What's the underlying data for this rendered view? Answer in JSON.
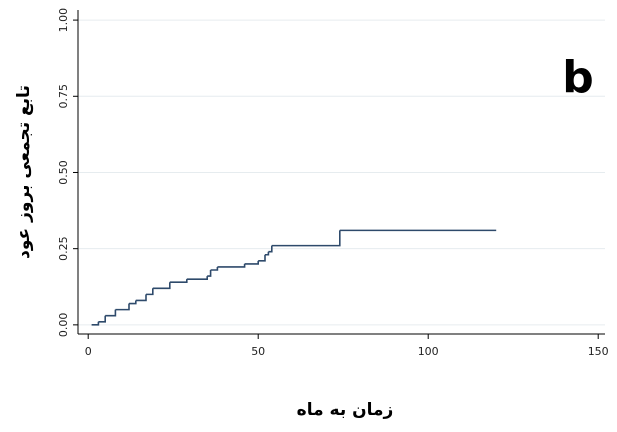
{
  "chart_data": {
    "type": "step",
    "annotation": "b",
    "xlabel": "زمان به ماه",
    "ylabel": "تابع تجمعی بروز عود",
    "color": "#2e4a6b",
    "x": [
      1,
      3,
      5,
      8,
      12,
      14,
      17,
      19,
      24,
      29,
      35,
      36,
      38,
      46,
      50,
      52,
      53,
      54,
      74,
      120
    ],
    "y": [
      0,
      0.01,
      0.03,
      0.05,
      0.07,
      0.08,
      0.1,
      0.12,
      0.14,
      0.15,
      0.16,
      0.18,
      0.19,
      0.2,
      0.21,
      0.23,
      0.24,
      0.26,
      0.31,
      0.31
    ],
    "xlim": [
      -3,
      152
    ],
    "xticks": [
      0,
      50,
      100,
      150
    ],
    "ylim": [
      -0.03,
      1.02
    ],
    "yticks": [
      {
        "value": 0,
        "label": "0.00"
      },
      {
        "value": 0.25,
        "label": "0.25"
      },
      {
        "value": 0.5,
        "label": "0.50"
      },
      {
        "value": 0.75,
        "label": "0.75"
      },
      {
        "value": 1,
        "label": "1.00"
      }
    ],
    "grid": true
  }
}
